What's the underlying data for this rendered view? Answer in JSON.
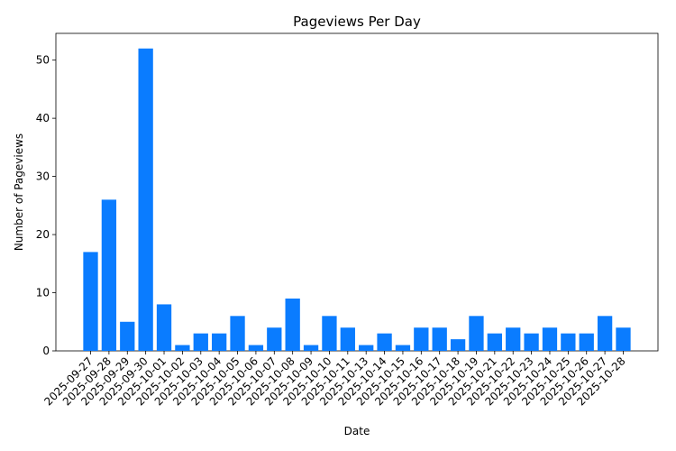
{
  "chart_data": {
    "type": "bar",
    "title": "Pageviews Per Day",
    "x_label": "Date",
    "y_label": "Number of Pageviews",
    "categories": [
      "2025-09-27",
      "2025-09-28",
      "2025-09-29",
      "2025-09-30",
      "2025-10-01",
      "2025-10-02",
      "2025-10-03",
      "2025-10-04",
      "2025-10-05",
      "2025-10-06",
      "2025-10-07",
      "2025-10-08",
      "2025-10-09",
      "2025-10-10",
      "2025-10-11",
      "2025-10-13",
      "2025-10-14",
      "2025-10-15",
      "2025-10-16",
      "2025-10-17",
      "2025-10-18",
      "2025-10-19",
      "2025-10-21",
      "2025-10-22",
      "2025-10-23",
      "2025-10-24",
      "2025-10-25",
      "2025-10-26",
      "2025-10-27",
      "2025-10-28"
    ],
    "values": [
      17,
      26,
      5,
      52,
      8,
      1,
      3,
      3,
      6,
      1,
      4,
      9,
      1,
      6,
      4,
      1,
      3,
      1,
      4,
      4,
      2,
      6,
      3,
      4,
      3,
      4,
      3,
      3,
      6,
      4
    ],
    "color": "#0a7cff",
    "ylim": [
      0,
      54.6
    ],
    "yticks": [
      0,
      10,
      20,
      30,
      40,
      50
    ],
    "grid": false
  }
}
